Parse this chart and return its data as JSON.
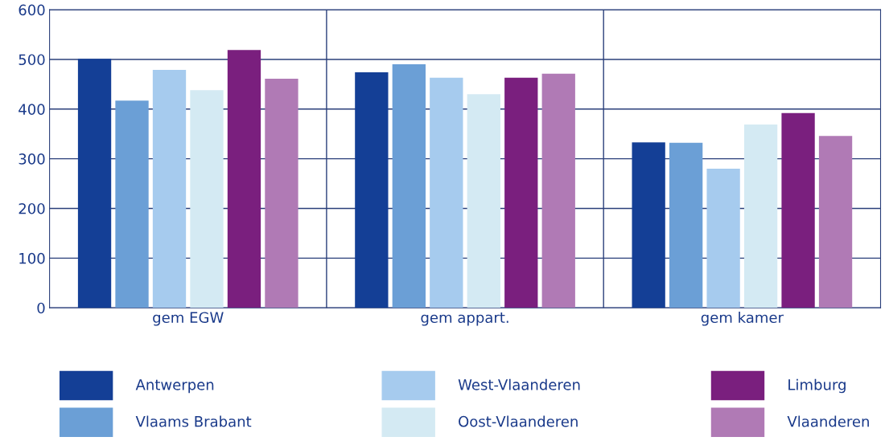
{
  "chart_data": {
    "type": "bar",
    "categories": [
      "gem EGW",
      "gem appart.",
      "gem kamer"
    ],
    "series": [
      {
        "name": "Antwerpen",
        "color": "#143f96",
        "values": [
          501,
          474,
          333
        ]
      },
      {
        "name": "Vlaams Brabant",
        "color": "#6b9fd6",
        "values": [
          417,
          490,
          332
        ]
      },
      {
        "name": "West-Vlaanderen",
        "color": "#a6cbee",
        "values": [
          479,
          463,
          280
        ]
      },
      {
        "name": "Oost-Vlaanderen",
        "color": "#d4eaf3",
        "values": [
          438,
          430,
          369
        ]
      },
      {
        "name": "Limburg",
        "color": "#7a1f7e",
        "values": [
          519,
          463,
          392
        ]
      },
      {
        "name": "Vlaanderen",
        "color": "#b07ab5",
        "values": [
          461,
          471,
          346
        ]
      }
    ],
    "ylim": [
      0,
      600
    ],
    "yticks": [
      0,
      100,
      200,
      300,
      400,
      500,
      600
    ],
    "grid": "y",
    "legend": "bottom"
  }
}
